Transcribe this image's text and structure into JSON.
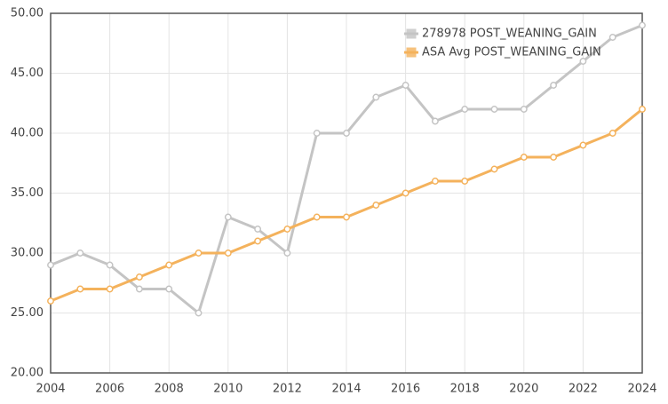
{
  "chart_data": {
    "type": "line",
    "x": [
      2004,
      2005,
      2006,
      2007,
      2008,
      2009,
      2010,
      2011,
      2012,
      2013,
      2014,
      2015,
      2016,
      2017,
      2018,
      2019,
      2020,
      2021,
      2022,
      2023,
      2024
    ],
    "series": [
      {
        "name": "278978 POST_WEANING_GAIN",
        "color": "#c4c4c4",
        "values": [
          29,
          30,
          29,
          27,
          27,
          25,
          33,
          32,
          30,
          40,
          40,
          43,
          44,
          41,
          42,
          42,
          42,
          44,
          46,
          48,
          49
        ]
      },
      {
        "name": "ASA Avg POST_WEANING_GAIN",
        "color": "#f4b25c",
        "values": [
          26,
          27,
          27,
          28,
          29,
          30,
          30,
          31,
          32,
          33,
          33,
          34,
          35,
          36,
          36,
          37,
          38,
          38,
          39,
          40,
          42
        ]
      }
    ],
    "xlim": [
      2004,
      2024
    ],
    "xticks": [
      2004,
      2006,
      2008,
      2010,
      2012,
      2014,
      2016,
      2018,
      2020,
      2022,
      2024
    ],
    "ylim": [
      20,
      50
    ],
    "yticks": [
      {
        "value": 20,
        "label": "20.00"
      },
      {
        "value": 25,
        "label": "25.00"
      },
      {
        "value": 30,
        "label": "30.00"
      },
      {
        "value": 35,
        "label": "35.00"
      },
      {
        "value": 40,
        "label": "40.00"
      },
      {
        "value": 45,
        "label": "45.00"
      },
      {
        "value": 50,
        "label": "50.00"
      }
    ],
    "grid": true,
    "legend": "top-right"
  }
}
